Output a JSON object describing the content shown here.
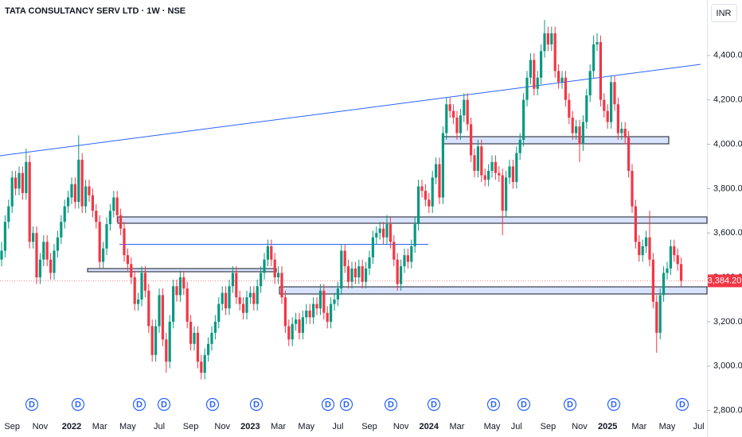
{
  "chart_data": {
    "type": "candlestick",
    "title": "TATA CONSULTANCY SERV LTD · 1W · NSE",
    "currency": "INR",
    "up_color": "#089981",
    "down_color": "#f23645",
    "ylim": [
      2770,
      4650
    ],
    "yticks": [
      {
        "value": 2800,
        "label": "2,800.00"
      },
      {
        "value": 3000,
        "label": "3,000.00"
      },
      {
        "value": 3200,
        "label": "3,200.00"
      },
      {
        "value": 3400,
        "label": "3,400.00"
      },
      {
        "value": 3600,
        "label": "3,600.00"
      },
      {
        "value": 3800,
        "label": "3,800.00"
      },
      {
        "value": 4000,
        "label": "4,000.00"
      },
      {
        "value": 4200,
        "label": "4,200.00"
      },
      {
        "value": 4400,
        "label": "4,400.00"
      }
    ],
    "last_price": {
      "value": 3384.2,
      "label": "3,384.20"
    },
    "dividend_label": "D",
    "categories": [
      null,
      null,
      null,
      "Sep",
      null,
      null,
      null,
      null,
      null,
      null,
      null,
      "Nov",
      null,
      null,
      null,
      null,
      null,
      null,
      null,
      null,
      "2022",
      null,
      null,
      null,
      null,
      null,
      null,
      null,
      "Mar",
      null,
      null,
      null,
      null,
      null,
      null,
      null,
      "May",
      null,
      null,
      null,
      null,
      null,
      null,
      null,
      null,
      "Jul",
      null,
      null,
      null,
      null,
      null,
      null,
      null,
      null,
      "Sep",
      null,
      null,
      null,
      null,
      null,
      null,
      null,
      null,
      "Nov",
      null,
      null,
      null,
      null,
      null,
      null,
      null,
      "2023",
      null,
      null,
      null,
      null,
      null,
      null,
      null,
      "Mar",
      null,
      null,
      null,
      null,
      null,
      null,
      null,
      "May",
      null,
      null,
      null,
      null,
      null,
      null,
      null,
      null,
      "Jul",
      null,
      null,
      null,
      null,
      null,
      null,
      null,
      null,
      "Sep",
      null,
      null,
      null,
      null,
      null,
      null,
      null,
      null,
      "Nov",
      null,
      null,
      null,
      null,
      null,
      null,
      null,
      "2024",
      null,
      null,
      null,
      null,
      null,
      null,
      null,
      "Mar",
      null,
      null,
      null,
      null,
      null,
      null,
      null,
      null,
      null,
      "May",
      null,
      null,
      null,
      null,
      null,
      null,
      "Jul",
      null,
      null,
      null,
      null,
      null,
      null,
      null,
      null,
      "Sep",
      null,
      null,
      null,
      null,
      null,
      null,
      null,
      null,
      "Nov",
      null,
      null,
      null,
      null,
      null,
      null,
      null,
      "2025",
      null,
      null,
      null,
      null,
      null,
      null,
      null,
      null,
      "Mar",
      null,
      null,
      null,
      null,
      null,
      null,
      null,
      "May",
      null,
      null,
      null,
      null,
      null,
      null,
      null,
      null,
      "Jul"
    ],
    "ohlc": [
      [
        3480,
        3560,
        3450,
        3520
      ],
      [
        3520,
        3680,
        3490,
        3650
      ],
      [
        3650,
        3750,
        3620,
        3720
      ],
      [
        3720,
        3880,
        3690,
        3850
      ],
      [
        3850,
        3880,
        3770,
        3800
      ],
      [
        3800,
        3900,
        3770,
        3870
      ],
      [
        3870,
        3900,
        3750,
        3780
      ],
      [
        3780,
        3980,
        3750,
        3920
      ],
      [
        3920,
        3950,
        3530,
        3560
      ],
      [
        3560,
        3630,
        3530,
        3600
      ],
      [
        3600,
        3630,
        3370,
        3400
      ],
      [
        3400,
        3510,
        3370,
        3480
      ],
      [
        3480,
        3590,
        3450,
        3560
      ],
      [
        3560,
        3590,
        3450,
        3480
      ],
      [
        3480,
        3510,
        3390,
        3420
      ],
      [
        3420,
        3550,
        3390,
        3520
      ],
      [
        3520,
        3610,
        3490,
        3580
      ],
      [
        3580,
        3680,
        3550,
        3650
      ],
      [
        3650,
        3750,
        3620,
        3720
      ],
      [
        3720,
        3790,
        3690,
        3760
      ],
      [
        3760,
        3850,
        3730,
        3820
      ],
      [
        3820,
        3850,
        3710,
        3740
      ],
      [
        3740,
        4040,
        3710,
        3930
      ],
      [
        3930,
        3960,
        3690,
        3720
      ],
      [
        3720,
        3840,
        3690,
        3810
      ],
      [
        3810,
        3840,
        3740,
        3770
      ],
      [
        3770,
        3800,
        3670,
        3700
      ],
      [
        3700,
        3730,
        3620,
        3650
      ],
      [
        3650,
        3680,
        3440,
        3470
      ],
      [
        3470,
        3560,
        3440,
        3530
      ],
      [
        3530,
        3670,
        3500,
        3640
      ],
      [
        3640,
        3730,
        3610,
        3700
      ],
      [
        3700,
        3790,
        3670,
        3760
      ],
      [
        3760,
        3790,
        3650,
        3680
      ],
      [
        3680,
        3710,
        3590,
        3620
      ],
      [
        3620,
        3650,
        3470,
        3500
      ],
      [
        3500,
        3530,
        3430,
        3460
      ],
      [
        3460,
        3490,
        3370,
        3400
      ],
      [
        3400,
        3430,
        3250,
        3280
      ],
      [
        3280,
        3330,
        3250,
        3300
      ],
      [
        3300,
        3450,
        3270,
        3420
      ],
      [
        3420,
        3450,
        3310,
        3340
      ],
      [
        3340,
        3370,
        3150,
        3180
      ],
      [
        3180,
        3210,
        3020,
        3050
      ],
      [
        3050,
        3210,
        3020,
        3180
      ],
      [
        3180,
        3350,
        3150,
        3320
      ],
      [
        3320,
        3350,
        3090,
        3120
      ],
      [
        3120,
        3150,
        2970,
        3020
      ],
      [
        3020,
        3230,
        2990,
        3200
      ],
      [
        3200,
        3390,
        3170,
        3360
      ],
      [
        3360,
        3390,
        3290,
        3320
      ],
      [
        3320,
        3430,
        3290,
        3400
      ],
      [
        3400,
        3430,
        3320,
        3350
      ],
      [
        3350,
        3380,
        3170,
        3200
      ],
      [
        3200,
        3230,
        3070,
        3100
      ],
      [
        3100,
        3180,
        3070,
        3150
      ],
      [
        3150,
        3180,
        2990,
        3020
      ],
      [
        3020,
        3050,
        2940,
        2970
      ],
      [
        2970,
        3080,
        2940,
        3050
      ],
      [
        3050,
        3130,
        3020,
        3100
      ],
      [
        3100,
        3180,
        3070,
        3150
      ],
      [
        3150,
        3230,
        3120,
        3200
      ],
      [
        3200,
        3310,
        3170,
        3280
      ],
      [
        3280,
        3360,
        3250,
        3330
      ],
      [
        3330,
        3360,
        3230,
        3260
      ],
      [
        3260,
        3390,
        3230,
        3360
      ],
      [
        3360,
        3450,
        3330,
        3420
      ],
      [
        3420,
        3450,
        3280,
        3310
      ],
      [
        3310,
        3340,
        3250,
        3280
      ],
      [
        3280,
        3310,
        3210,
        3240
      ],
      [
        3240,
        3340,
        3210,
        3310
      ],
      [
        3310,
        3360,
        3280,
        3330
      ],
      [
        3330,
        3360,
        3250,
        3280
      ],
      [
        3280,
        3390,
        3250,
        3360
      ],
      [
        3360,
        3450,
        3330,
        3420
      ],
      [
        3420,
        3510,
        3390,
        3480
      ],
      [
        3480,
        3570,
        3450,
        3540
      ],
      [
        3540,
        3570,
        3450,
        3480
      ],
      [
        3480,
        3510,
        3370,
        3400
      ],
      [
        3400,
        3450,
        3370,
        3420
      ],
      [
        3420,
        3450,
        3280,
        3310
      ],
      [
        3310,
        3340,
        3150,
        3180
      ],
      [
        3180,
        3210,
        3090,
        3120
      ],
      [
        3120,
        3220,
        3090,
        3190
      ],
      [
        3190,
        3240,
        3160,
        3210
      ],
      [
        3210,
        3240,
        3120,
        3150
      ],
      [
        3150,
        3250,
        3120,
        3220
      ],
      [
        3220,
        3280,
        3190,
        3250
      ],
      [
        3250,
        3280,
        3190,
        3220
      ],
      [
        3220,
        3310,
        3190,
        3280
      ],
      [
        3280,
        3310,
        3230,
        3260
      ],
      [
        3260,
        3370,
        3230,
        3340
      ],
      [
        3340,
        3370,
        3210,
        3240
      ],
      [
        3240,
        3270,
        3170,
        3200
      ],
      [
        3200,
        3310,
        3170,
        3280
      ],
      [
        3280,
        3330,
        3250,
        3300
      ],
      [
        3300,
        3380,
        3270,
        3350
      ],
      [
        3350,
        3550,
        3320,
        3520
      ],
      [
        3520,
        3550,
        3420,
        3450
      ],
      [
        3450,
        3480,
        3350,
        3380
      ],
      [
        3380,
        3470,
        3350,
        3440
      ],
      [
        3440,
        3470,
        3370,
        3400
      ],
      [
        3400,
        3480,
        3370,
        3450
      ],
      [
        3450,
        3480,
        3350,
        3380
      ],
      [
        3380,
        3470,
        3350,
        3440
      ],
      [
        3440,
        3520,
        3410,
        3490
      ],
      [
        3490,
        3610,
        3460,
        3580
      ],
      [
        3580,
        3630,
        3550,
        3600
      ],
      [
        3600,
        3650,
        3570,
        3620
      ],
      [
        3620,
        3650,
        3550,
        3580
      ],
      [
        3580,
        3680,
        3550,
        3640
      ],
      [
        3640,
        3670,
        3530,
        3560
      ],
      [
        3560,
        3590,
        3450,
        3480
      ],
      [
        3480,
        3510,
        3340,
        3370
      ],
      [
        3370,
        3480,
        3340,
        3450
      ],
      [
        3450,
        3530,
        3420,
        3500
      ],
      [
        3500,
        3530,
        3440,
        3470
      ],
      [
        3470,
        3570,
        3440,
        3540
      ],
      [
        3540,
        3670,
        3510,
        3640
      ],
      [
        3640,
        3840,
        3610,
        3810
      ],
      [
        3810,
        3840,
        3760,
        3790
      ],
      [
        3790,
        3820,
        3720,
        3750
      ],
      [
        3750,
        3780,
        3690,
        3720
      ],
      [
        3720,
        3880,
        3690,
        3850
      ],
      [
        3850,
        3940,
        3820,
        3910
      ],
      [
        3910,
        3940,
        3730,
        3760
      ],
      [
        3760,
        4080,
        3730,
        4050
      ],
      [
        4050,
        4210,
        4020,
        4180
      ],
      [
        4180,
        4210,
        4120,
        4150
      ],
      [
        4150,
        4180,
        4090,
        4120
      ],
      [
        4120,
        4150,
        4020,
        4050
      ],
      [
        4050,
        4160,
        4020,
        4130
      ],
      [
        4130,
        4230,
        4100,
        4200
      ],
      [
        4200,
        4230,
        4060,
        4090
      ],
      [
        4090,
        4120,
        3920,
        3950
      ],
      [
        3950,
        3980,
        3850,
        3880
      ],
      [
        3880,
        4020,
        3850,
        3990
      ],
      [
        3990,
        4020,
        3830,
        3860
      ],
      [
        3860,
        3890,
        3810,
        3840
      ],
      [
        3840,
        3910,
        3810,
        3880
      ],
      [
        3880,
        3950,
        3850,
        3920
      ],
      [
        3920,
        3950,
        3840,
        3870
      ],
      [
        3870,
        3900,
        3830,
        3860
      ],
      [
        3860,
        3890,
        3590,
        3700
      ],
      [
        3700,
        3880,
        3670,
        3850
      ],
      [
        3850,
        3930,
        3820,
        3900
      ],
      [
        3900,
        3930,
        3800,
        3830
      ],
      [
        3830,
        3990,
        3800,
        3960
      ],
      [
        3960,
        4050,
        3930,
        4020
      ],
      [
        4020,
        4230,
        3990,
        4200
      ],
      [
        4200,
        4330,
        4170,
        4300
      ],
      [
        4300,
        4410,
        4270,
        4380
      ],
      [
        4380,
        4410,
        4220,
        4250
      ],
      [
        4250,
        4330,
        4220,
        4300
      ],
      [
        4300,
        4450,
        4270,
        4420
      ],
      [
        4420,
        4560,
        4390,
        4500
      ],
      [
        4500,
        4530,
        4420,
        4450
      ],
      [
        4450,
        4530,
        4420,
        4500
      ],
      [
        4500,
        4530,
        4300,
        4330
      ],
      [
        4330,
        4360,
        4250,
        4280
      ],
      [
        4280,
        4330,
        4250,
        4300
      ],
      [
        4300,
        4330,
        4170,
        4200
      ],
      [
        4200,
        4230,
        4090,
        4120
      ],
      [
        4120,
        4150,
        4020,
        4050
      ],
      [
        4050,
        4110,
        4020,
        4080
      ],
      [
        4080,
        4110,
        3920,
        4000
      ],
      [
        4000,
        4130,
        3970,
        4100
      ],
      [
        4100,
        4250,
        4070,
        4220
      ],
      [
        4220,
        4360,
        4190,
        4330
      ],
      [
        4330,
        4490,
        4300,
        4450
      ],
      [
        4450,
        4500,
        4420,
        4460
      ],
      [
        4460,
        4490,
        4170,
        4200
      ],
      [
        4200,
        4230,
        4120,
        4150
      ],
      [
        4150,
        4180,
        4070,
        4100
      ],
      [
        4100,
        4310,
        4070,
        4280
      ],
      [
        4280,
        4310,
        4150,
        4180
      ],
      [
        4180,
        4210,
        4020,
        4050
      ],
      [
        4050,
        4100,
        4020,
        4070
      ],
      [
        4070,
        4100,
        4000,
        4030
      ],
      [
        4030,
        4060,
        3850,
        3880
      ],
      [
        3880,
        3910,
        3690,
        3720
      ],
      [
        3720,
        3750,
        3530,
        3560
      ],
      [
        3560,
        3590,
        3470,
        3500
      ],
      [
        3500,
        3570,
        3470,
        3540
      ],
      [
        3540,
        3610,
        3510,
        3580
      ],
      [
        3580,
        3700,
        3450,
        3480
      ],
      [
        3480,
        3510,
        3260,
        3290
      ],
      [
        3290,
        3320,
        3060,
        3150
      ],
      [
        3150,
        3350,
        3120,
        3320
      ],
      [
        3320,
        3450,
        3290,
        3420
      ],
      [
        3420,
        3470,
        3390,
        3440
      ],
      [
        3440,
        3570,
        3410,
        3540
      ],
      [
        3540,
        3570,
        3470,
        3500
      ],
      [
        3500,
        3530,
        3430,
        3460
      ],
      [
        3460,
        3490,
        3360,
        3384.2
      ],
      null,
      null,
      null,
      null,
      null
    ]
  }
}
